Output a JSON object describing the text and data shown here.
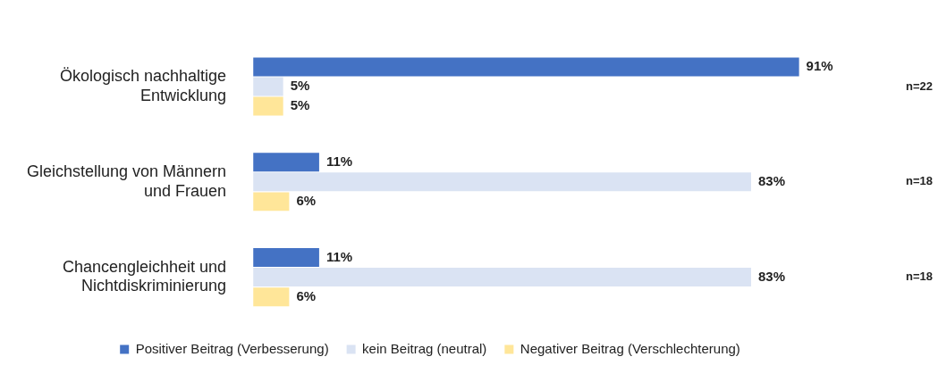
{
  "chart_data": {
    "type": "bar",
    "orientation": "horizontal",
    "categories": [
      "Ökologisch nachhaltige\nEntwicklung",
      "Gleichstellung von Männern\nund Frauen",
      "Chancengleichheit und\nNichtdiskriminierung"
    ],
    "series": [
      {
        "name": "Positiver Beitrag (Verbesserung)",
        "color": "#4472c4",
        "values": [
          91,
          11,
          11
        ],
        "value_labels": [
          "91%",
          "11%",
          "11%"
        ]
      },
      {
        "name": "kein Beitrag (neutral)",
        "color": "#dae3f3",
        "values": [
          5,
          83,
          83
        ],
        "value_labels": [
          "5%",
          "83%",
          "83%"
        ]
      },
      {
        "name": "Negativer Beitrag (Verschlechterung)",
        "color": "#ffe699",
        "values": [
          5,
          6,
          6
        ],
        "value_labels": [
          "5%",
          "6%",
          "6%"
        ]
      }
    ],
    "annotations": [
      "n=22",
      "n=18",
      "n=18"
    ],
    "tick_labels": "y",
    "legend": "bottom"
  }
}
